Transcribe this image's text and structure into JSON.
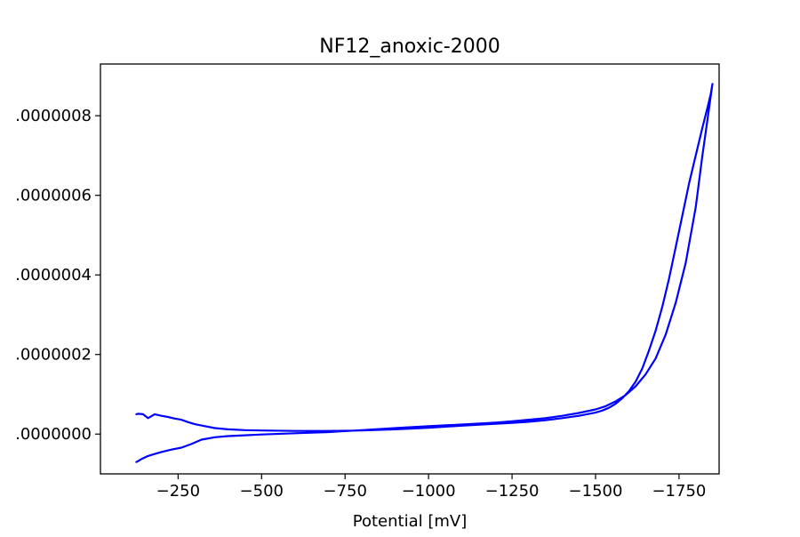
{
  "chart_data": {
    "type": "line",
    "title": "NF12_anoxic-2000",
    "xlabel": "Potential [mV]",
    "ylabel": "",
    "x_axis_reversed": true,
    "xlim": [
      -17.5,
      -1870
    ],
    "ylim": [
      -1e-07,
      9.3e-07
    ],
    "x_ticks": [
      -250,
      -500,
      -750,
      -1000,
      -1250,
      -1500,
      -1750
    ],
    "x_tick_labels": [
      "−250",
      "−500",
      "−750",
      "−1000",
      "−1250",
      "−1500",
      "−1750"
    ],
    "y_ticks": [
      0.0,
      2e-07,
      4e-07,
      6e-07,
      8e-07
    ],
    "y_tick_labels": [
      ".0000000",
      ".0000002",
      ".0000004",
      ".0000006",
      ".0000008"
    ],
    "grid": false,
    "legend": "none",
    "series": [
      {
        "color": "#0000ff",
        "x": [
          -125,
          -130,
          -140,
          -160,
          -180,
          -200,
          -230,
          -260,
          -290,
          -320,
          -360,
          -400,
          -450,
          -500,
          -600,
          -700,
          -800,
          -900,
          -1000,
          -1100,
          -1200,
          -1250,
          -1300,
          -1350,
          -1400,
          -1450,
          -1500,
          -1530,
          -1560,
          -1590,
          -1620,
          -1650,
          -1680,
          -1710,
          -1740,
          -1770,
          -1800,
          -1820,
          -1835,
          -1845,
          -1850,
          -1850,
          -1845,
          -1835,
          -1820,
          -1800,
          -1780,
          -1760,
          -1740,
          -1720,
          -1700,
          -1680,
          -1660,
          -1640,
          -1620,
          -1600,
          -1580,
          -1560,
          -1540,
          -1520,
          -1500,
          -1450,
          -1400,
          -1350,
          -1300,
          -1250,
          -1200,
          -1100,
          -1000,
          -900,
          -800,
          -700,
          -600,
          -500,
          -450,
          -400,
          -360,
          -330,
          -300,
          -280,
          -260,
          -240,
          -220,
          -200,
          -180,
          -160,
          -145,
          -130,
          -125
        ],
        "y": [
          -7e-08,
          -6.8e-08,
          -6.3e-08,
          -5.5e-08,
          -5e-08,
          -4.5e-08,
          -3.9e-08,
          -3.4e-08,
          -2.5e-08,
          -1.4e-08,
          -8e-09,
          -5e-09,
          -3e-09,
          -1e-09,
          2e-09,
          5e-09,
          1e-08,
          1.5e-08,
          2e-08,
          2.4e-08,
          2.9e-08,
          3.2e-08,
          3.6e-08,
          4e-08,
          4.6e-08,
          5.3e-08,
          6.2e-08,
          7e-08,
          8.2e-08,
          9.8e-08,
          1.2e-07,
          1.5e-07,
          1.9e-07,
          2.5e-07,
          3.3e-07,
          4.3e-07,
          5.7e-07,
          7e-07,
          7.9e-07,
          8.5e-07,
          8.8e-07,
          8.8e-07,
          8.55e-07,
          8.2e-07,
          7.7e-07,
          7e-07,
          6.3e-07,
          5.5e-07,
          4.7e-07,
          3.9e-07,
          3.2e-07,
          2.6e-07,
          2.1e-07,
          1.65e-07,
          1.32e-07,
          1.08e-07,
          9e-08,
          7.6e-08,
          6.6e-08,
          5.9e-08,
          5.4e-08,
          4.6e-08,
          4e-08,
          3.5e-08,
          3.1e-08,
          2.8e-08,
          2.6e-08,
          2.1e-08,
          1.6e-08,
          1.2e-08,
          9e-09,
          8e-09,
          8e-09,
          9e-09,
          1e-08,
          1.2e-08,
          1.5e-08,
          2e-08,
          2.5e-08,
          3e-08,
          3.6e-08,
          3.9e-08,
          4.3e-08,
          4.6e-08,
          5e-08,
          4e-08,
          5e-08,
          5.1e-08,
          5e-08
        ]
      }
    ]
  }
}
